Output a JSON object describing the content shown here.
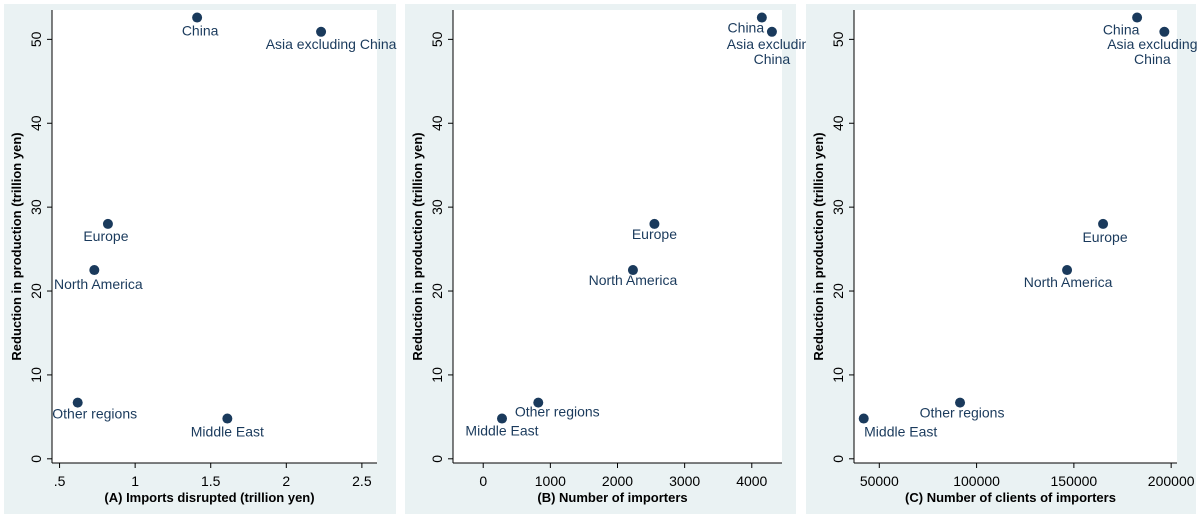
{
  "colors": {
    "background": "#ffffff",
    "panel_background": "#eaf2f3",
    "axis": "#000000",
    "marker": "#1a3a5c",
    "label": "#1a3a5c",
    "text": "#000000"
  },
  "chart_data": [
    {
      "type": "scatter",
      "xlabel": "(A) Imports disrupted (trillion yen)",
      "ylabel": "Reduction in production (trillion yen)",
      "xlim": [
        0.45,
        2.6
      ],
      "ylim": [
        -0.5,
        53.5
      ],
      "xticks": [
        0.5,
        1,
        1.5,
        2,
        2.5
      ],
      "xtick_labels": [
        ".5",
        "1",
        "1.5",
        "2",
        "2.5"
      ],
      "yticks": [
        0,
        10,
        20,
        30,
        40,
        50
      ],
      "ytick_labels": [
        "0",
        "10",
        "20",
        "30",
        "40",
        "50"
      ],
      "grid": false,
      "points": [
        {
          "label": "China",
          "x": 1.41,
          "y": 52.6
        },
        {
          "label": "Asia excluding China",
          "x": 2.23,
          "y": 50.9
        },
        {
          "label": "Europe",
          "x": 0.82,
          "y": 28.0
        },
        {
          "label": "North America",
          "x": 0.73,
          "y": 22.5
        },
        {
          "label": "Other regions",
          "x": 0.62,
          "y": 6.7
        },
        {
          "label": "Middle East",
          "x": 1.61,
          "y": 4.8
        }
      ]
    },
    {
      "type": "scatter",
      "xlabel": "(B) Number of importers",
      "ylabel": "Reduction in production (trillion yen)",
      "xlim": [
        -450,
        4450
      ],
      "ylim": [
        -0.5,
        53.5
      ],
      "xticks": [
        0,
        1000,
        2000,
        3000,
        4000
      ],
      "xtick_labels": [
        "0",
        "1000",
        "2000",
        "3000",
        "4000"
      ],
      "yticks": [
        0,
        10,
        20,
        30,
        40,
        50
      ],
      "ytick_labels": [
        "0",
        "10",
        "20",
        "30",
        "40",
        "50"
      ],
      "grid": false,
      "points": [
        {
          "label": "China",
          "x": 4150,
          "y": 52.6
        },
        {
          "label": "Asia excluding China",
          "x": 4300,
          "y": 50.9
        },
        {
          "label": "Europe",
          "x": 2550,
          "y": 28.0
        },
        {
          "label": "North America",
          "x": 2230,
          "y": 22.5
        },
        {
          "label": "Other regions",
          "x": 820,
          "y": 6.7
        },
        {
          "label": "Middle East",
          "x": 280,
          "y": 4.8
        }
      ]
    },
    {
      "type": "scatter",
      "xlabel": "(C) Number of clients of importers",
      "ylabel": "Reduction in production (trillion yen)",
      "xlim": [
        37000,
        203000
      ],
      "ylim": [
        -0.5,
        53.5
      ],
      "xticks": [
        50000,
        100000,
        150000,
        200000
      ],
      "xtick_labels": [
        "50000",
        "100000",
        "150000",
        "200000"
      ],
      "yticks": [
        0,
        10,
        20,
        30,
        40,
        50
      ],
      "ytick_labels": [
        "0",
        "10",
        "20",
        "30",
        "40",
        "50"
      ],
      "grid": false,
      "points": [
        {
          "label": "China",
          "x": 182500,
          "y": 52.6
        },
        {
          "label": "Asia excluding China",
          "x": 196500,
          "y": 50.9
        },
        {
          "label": "Europe",
          "x": 165000,
          "y": 28.0
        },
        {
          "label": "North America",
          "x": 146500,
          "y": 22.5
        },
        {
          "label": "Other regions",
          "x": 91500,
          "y": 6.7
        },
        {
          "label": "Middle East",
          "x": 42000,
          "y": 4.8
        }
      ]
    }
  ]
}
